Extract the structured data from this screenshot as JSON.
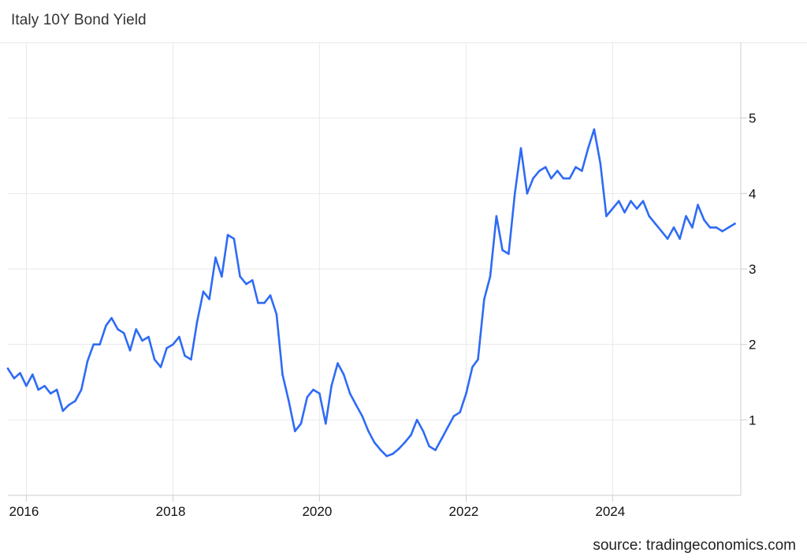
{
  "chart_data": {
    "type": "line",
    "title": "Italy 10Y Bond Yield",
    "source": "source: tradingeconomics.com",
    "xlabel": "",
    "ylabel": "",
    "x_ticks": [
      "2016",
      "2018",
      "2020",
      "2022",
      "2024"
    ],
    "y_ticks": [
      "1",
      "2",
      "3",
      "4",
      "5"
    ],
    "xlim": [
      "2015-10-01",
      "2025-10-01"
    ],
    "ylim": [
      0,
      6
    ],
    "grid": true,
    "legend": "none",
    "color": "#2e6bf5",
    "series": [
      {
        "x": [
          "2015-10-01",
          "2015-11-01",
          "2015-12-01",
          "2016-01-01",
          "2016-02-01",
          "2016-03-01",
          "2016-04-01",
          "2016-05-01",
          "2016-06-01",
          "2016-07-01",
          "2016-08-01",
          "2016-09-01",
          "2016-10-01",
          "2016-11-01",
          "2016-12-01",
          "2017-01-01",
          "2017-02-01",
          "2017-03-01",
          "2017-04-01",
          "2017-05-01",
          "2017-06-01",
          "2017-07-01",
          "2017-08-01",
          "2017-09-01",
          "2017-10-01",
          "2017-11-01",
          "2017-12-01",
          "2018-01-01",
          "2018-02-01",
          "2018-03-01",
          "2018-04-01",
          "2018-05-01",
          "2018-06-01",
          "2018-07-01",
          "2018-08-01",
          "2018-09-01",
          "2018-10-01",
          "2018-11-01",
          "2018-12-01",
          "2019-01-01",
          "2019-02-01",
          "2019-03-01",
          "2019-04-01",
          "2019-05-01",
          "2019-06-01",
          "2019-07-01",
          "2019-08-01",
          "2019-09-01",
          "2019-10-01",
          "2019-11-01",
          "2019-12-01",
          "2020-01-01",
          "2020-02-01",
          "2020-03-01",
          "2020-04-01",
          "2020-05-01",
          "2020-06-01",
          "2020-07-01",
          "2020-08-01",
          "2020-09-01",
          "2020-10-01",
          "2020-11-01",
          "2020-12-01",
          "2021-01-01",
          "2021-02-01",
          "2021-03-01",
          "2021-04-01",
          "2021-05-01",
          "2021-06-01",
          "2021-07-01",
          "2021-08-01",
          "2021-09-01",
          "2021-10-01",
          "2021-11-01",
          "2021-12-01",
          "2022-01-01",
          "2022-02-01",
          "2022-03-01",
          "2022-04-01",
          "2022-05-01",
          "2022-06-01",
          "2022-07-01",
          "2022-08-01",
          "2022-09-01",
          "2022-10-01",
          "2022-11-01",
          "2022-12-01",
          "2023-01-01",
          "2023-02-01",
          "2023-03-01",
          "2023-04-01",
          "2023-05-01",
          "2023-06-01",
          "2023-07-01",
          "2023-08-01",
          "2023-09-01",
          "2023-10-01",
          "2023-11-01",
          "2023-12-01",
          "2024-01-01",
          "2024-02-01",
          "2024-03-01",
          "2024-04-01",
          "2024-05-01",
          "2024-06-01",
          "2024-07-01",
          "2024-08-01",
          "2024-09-01",
          "2024-10-01",
          "2024-11-01",
          "2024-12-01",
          "2025-01-01",
          "2025-02-01",
          "2025-03-01",
          "2025-04-01",
          "2025-05-01",
          "2025-06-01",
          "2025-07-01",
          "2025-08-01",
          "2025-09-01"
        ],
        "values": [
          1.68,
          1.55,
          1.62,
          1.45,
          1.6,
          1.4,
          1.45,
          1.35,
          1.4,
          1.12,
          1.2,
          1.25,
          1.4,
          1.78,
          2.0,
          2.0,
          2.25,
          2.35,
          2.2,
          2.15,
          1.92,
          2.2,
          2.05,
          2.1,
          1.8,
          1.7,
          1.95,
          2.0,
          2.1,
          1.85,
          1.8,
          2.3,
          2.7,
          2.6,
          3.15,
          2.9,
          3.45,
          3.4,
          2.9,
          2.8,
          2.85,
          2.55,
          2.55,
          2.65,
          2.4,
          1.6,
          1.25,
          0.85,
          0.95,
          1.3,
          1.4,
          1.35,
          0.95,
          1.45,
          1.75,
          1.6,
          1.35,
          1.2,
          1.05,
          0.85,
          0.7,
          0.6,
          0.52,
          0.55,
          0.62,
          0.7,
          0.8,
          1.0,
          0.85,
          0.65,
          0.6,
          0.75,
          0.9,
          1.05,
          1.1,
          1.35,
          1.7,
          1.8,
          2.6,
          2.9,
          3.7,
          3.25,
          3.2,
          4.0,
          4.6,
          4.0,
          4.2,
          4.3,
          4.35,
          4.2,
          4.3,
          4.2,
          4.2,
          4.35,
          4.3,
          4.6,
          4.85,
          4.4,
          3.7,
          3.8,
          3.9,
          3.75,
          3.9,
          3.8,
          3.9,
          3.7,
          3.6,
          3.5,
          3.4,
          3.55,
          3.4,
          3.7,
          3.55,
          3.85,
          3.65,
          3.55,
          3.55,
          3.5,
          3.55,
          3.6
        ]
      }
    ]
  }
}
